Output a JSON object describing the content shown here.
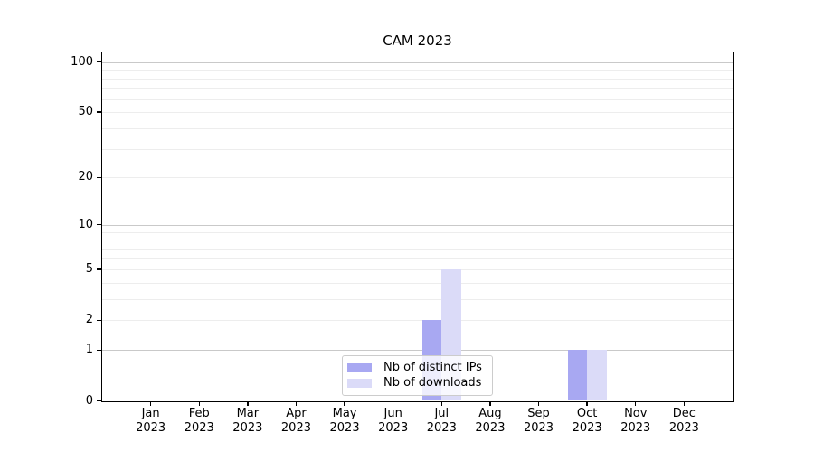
{
  "title": "CAM 2023",
  "chart_data": {
    "type": "bar",
    "title": "CAM 2023",
    "categories": [
      "Jan 2023",
      "Feb 2023",
      "Mar 2023",
      "Apr 2023",
      "May 2023",
      "Jun 2023",
      "Jul 2023",
      "Aug 2023",
      "Sep 2023",
      "Oct 2023",
      "Nov 2023",
      "Dec 2023"
    ],
    "series": [
      {
        "name": "Nb of distinct IPs",
        "color": "#a8a8f2",
        "values": [
          0,
          0,
          0,
          0,
          0,
          0,
          2,
          0,
          0,
          1,
          0,
          0
        ]
      },
      {
        "name": "Nb of downloads",
        "color": "#dbdbf8",
        "values": [
          0,
          0,
          0,
          0,
          0,
          0,
          5,
          0,
          0,
          1,
          0,
          0
        ]
      }
    ],
    "xlabel": "",
    "ylabel": "",
    "yscale": "log1p",
    "y_ticks": [
      0,
      1,
      2,
      5,
      10,
      20,
      50,
      100
    ],
    "ylim": [
      0,
      112
    ],
    "grid": "horizontal",
    "major_gridlines": [
      1,
      10,
      100
    ],
    "minor_gridlines": [
      2,
      3,
      4,
      5,
      6,
      7,
      8,
      9,
      20,
      30,
      40,
      50,
      60,
      70,
      80,
      90
    ],
    "legend_position": "lower center"
  },
  "colors": {
    "background": "#ffffff",
    "axis": "#000000",
    "grid_major": "#c9c9c9",
    "grid_minor": "#ededed",
    "legend_border": "#cccccc"
  }
}
